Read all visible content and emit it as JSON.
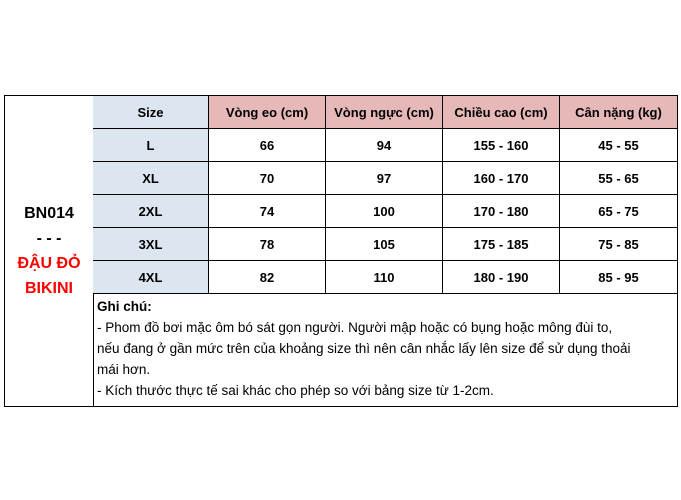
{
  "product": {
    "code": "BN014",
    "separator": "- - -",
    "name_line1": "ĐẬU ĐỎ",
    "name_line2": "BIKINI"
  },
  "table": {
    "headers": [
      "Size",
      "Vòng eo (cm)",
      "Vòng ngực (cm)",
      "Chiều cao (cm)",
      "Cân nặng (kg)"
    ],
    "rows": [
      [
        "L",
        "66",
        "94",
        "155 - 160",
        "45 - 55"
      ],
      [
        "XL",
        "70",
        "97",
        "160 - 170",
        "55 - 65"
      ],
      [
        "2XL",
        "74",
        "100",
        "170 - 180",
        "65 - 75"
      ],
      [
        "3XL",
        "78",
        "105",
        "175 - 185",
        "75 - 85"
      ],
      [
        "4XL",
        "82",
        "110",
        "180 - 190",
        "85 - 95"
      ]
    ]
  },
  "notes": {
    "title": "Ghi chú:",
    "lines": [
      "- Phom đồ bơi mặc ôm bó sát gọn người. Người mập hoặc có bụng hoặc mông đùi to,",
      "nếu đang ở gần mức trên của khoảng size thì nên cân nhắc lấy lên size để sử dụng thoải",
      "mái hơn.",
      "- Kích thước thực tế sai khác cho phép so với bảng size từ 1-2cm."
    ]
  },
  "colors": {
    "header_size": "#dce6f1",
    "header_other": "#e6b8b7",
    "product_name": "#ff0000"
  }
}
